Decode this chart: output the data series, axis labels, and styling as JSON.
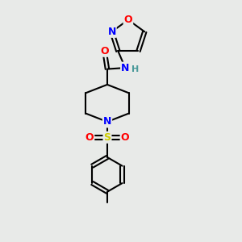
{
  "bg_color": "#e8eae8",
  "bond_color": "#000000",
  "bond_width": 1.5,
  "atom_colors": {
    "O": "#ff0000",
    "N": "#0000ff",
    "S": "#cccc00",
    "H": "#4a9a9a",
    "C": "#000000"
  },
  "font_size": 9,
  "figsize": [
    3.0,
    3.0
  ],
  "dpi": 100
}
